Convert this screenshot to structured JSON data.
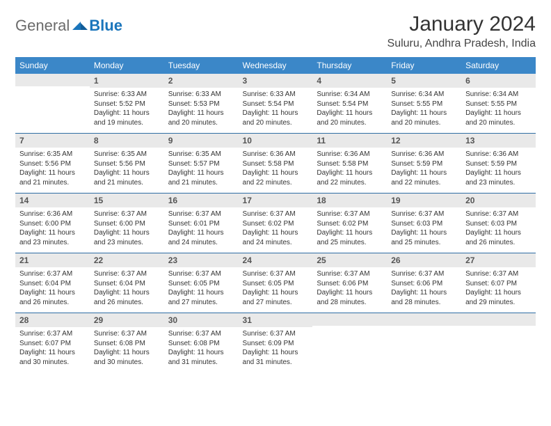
{
  "logo": {
    "text_general": "General",
    "text_blue": "Blue"
  },
  "title": {
    "month": "January 2024",
    "location": "Suluru, Andhra Pradesh, India"
  },
  "colors": {
    "header_bg": "#3b87c8",
    "header_text": "#ffffff",
    "daynum_bg": "#e9e9e9",
    "row_border": "#2e6da4",
    "logo_gray": "#6b6b6b",
    "logo_blue": "#1a75bb"
  },
  "typography": {
    "month_fontsize": 30,
    "location_fontsize": 16,
    "dow_fontsize": 12,
    "daynum_fontsize": 12,
    "cell_fontsize": 10
  },
  "day_headers": [
    "Sunday",
    "Monday",
    "Tuesday",
    "Wednesday",
    "Thursday",
    "Friday",
    "Saturday"
  ],
  "weeks": [
    [
      {
        "num": "",
        "lines": []
      },
      {
        "num": "1",
        "lines": [
          "Sunrise: 6:33 AM",
          "Sunset: 5:52 PM",
          "Daylight: 11 hours",
          "and 19 minutes."
        ]
      },
      {
        "num": "2",
        "lines": [
          "Sunrise: 6:33 AM",
          "Sunset: 5:53 PM",
          "Daylight: 11 hours",
          "and 20 minutes."
        ]
      },
      {
        "num": "3",
        "lines": [
          "Sunrise: 6:33 AM",
          "Sunset: 5:54 PM",
          "Daylight: 11 hours",
          "and 20 minutes."
        ]
      },
      {
        "num": "4",
        "lines": [
          "Sunrise: 6:34 AM",
          "Sunset: 5:54 PM",
          "Daylight: 11 hours",
          "and 20 minutes."
        ]
      },
      {
        "num": "5",
        "lines": [
          "Sunrise: 6:34 AM",
          "Sunset: 5:55 PM",
          "Daylight: 11 hours",
          "and 20 minutes."
        ]
      },
      {
        "num": "6",
        "lines": [
          "Sunrise: 6:34 AM",
          "Sunset: 5:55 PM",
          "Daylight: 11 hours",
          "and 20 minutes."
        ]
      }
    ],
    [
      {
        "num": "7",
        "lines": [
          "Sunrise: 6:35 AM",
          "Sunset: 5:56 PM",
          "Daylight: 11 hours",
          "and 21 minutes."
        ]
      },
      {
        "num": "8",
        "lines": [
          "Sunrise: 6:35 AM",
          "Sunset: 5:56 PM",
          "Daylight: 11 hours",
          "and 21 minutes."
        ]
      },
      {
        "num": "9",
        "lines": [
          "Sunrise: 6:35 AM",
          "Sunset: 5:57 PM",
          "Daylight: 11 hours",
          "and 21 minutes."
        ]
      },
      {
        "num": "10",
        "lines": [
          "Sunrise: 6:36 AM",
          "Sunset: 5:58 PM",
          "Daylight: 11 hours",
          "and 22 minutes."
        ]
      },
      {
        "num": "11",
        "lines": [
          "Sunrise: 6:36 AM",
          "Sunset: 5:58 PM",
          "Daylight: 11 hours",
          "and 22 minutes."
        ]
      },
      {
        "num": "12",
        "lines": [
          "Sunrise: 6:36 AM",
          "Sunset: 5:59 PM",
          "Daylight: 11 hours",
          "and 22 minutes."
        ]
      },
      {
        "num": "13",
        "lines": [
          "Sunrise: 6:36 AM",
          "Sunset: 5:59 PM",
          "Daylight: 11 hours",
          "and 23 minutes."
        ]
      }
    ],
    [
      {
        "num": "14",
        "lines": [
          "Sunrise: 6:36 AM",
          "Sunset: 6:00 PM",
          "Daylight: 11 hours",
          "and 23 minutes."
        ]
      },
      {
        "num": "15",
        "lines": [
          "Sunrise: 6:37 AM",
          "Sunset: 6:00 PM",
          "Daylight: 11 hours",
          "and 23 minutes."
        ]
      },
      {
        "num": "16",
        "lines": [
          "Sunrise: 6:37 AM",
          "Sunset: 6:01 PM",
          "Daylight: 11 hours",
          "and 24 minutes."
        ]
      },
      {
        "num": "17",
        "lines": [
          "Sunrise: 6:37 AM",
          "Sunset: 6:02 PM",
          "Daylight: 11 hours",
          "and 24 minutes."
        ]
      },
      {
        "num": "18",
        "lines": [
          "Sunrise: 6:37 AM",
          "Sunset: 6:02 PM",
          "Daylight: 11 hours",
          "and 25 minutes."
        ]
      },
      {
        "num": "19",
        "lines": [
          "Sunrise: 6:37 AM",
          "Sunset: 6:03 PM",
          "Daylight: 11 hours",
          "and 25 minutes."
        ]
      },
      {
        "num": "20",
        "lines": [
          "Sunrise: 6:37 AM",
          "Sunset: 6:03 PM",
          "Daylight: 11 hours",
          "and 26 minutes."
        ]
      }
    ],
    [
      {
        "num": "21",
        "lines": [
          "Sunrise: 6:37 AM",
          "Sunset: 6:04 PM",
          "Daylight: 11 hours",
          "and 26 minutes."
        ]
      },
      {
        "num": "22",
        "lines": [
          "Sunrise: 6:37 AM",
          "Sunset: 6:04 PM",
          "Daylight: 11 hours",
          "and 26 minutes."
        ]
      },
      {
        "num": "23",
        "lines": [
          "Sunrise: 6:37 AM",
          "Sunset: 6:05 PM",
          "Daylight: 11 hours",
          "and 27 minutes."
        ]
      },
      {
        "num": "24",
        "lines": [
          "Sunrise: 6:37 AM",
          "Sunset: 6:05 PM",
          "Daylight: 11 hours",
          "and 27 minutes."
        ]
      },
      {
        "num": "25",
        "lines": [
          "Sunrise: 6:37 AM",
          "Sunset: 6:06 PM",
          "Daylight: 11 hours",
          "and 28 minutes."
        ]
      },
      {
        "num": "26",
        "lines": [
          "Sunrise: 6:37 AM",
          "Sunset: 6:06 PM",
          "Daylight: 11 hours",
          "and 28 minutes."
        ]
      },
      {
        "num": "27",
        "lines": [
          "Sunrise: 6:37 AM",
          "Sunset: 6:07 PM",
          "Daylight: 11 hours",
          "and 29 minutes."
        ]
      }
    ],
    [
      {
        "num": "28",
        "lines": [
          "Sunrise: 6:37 AM",
          "Sunset: 6:07 PM",
          "Daylight: 11 hours",
          "and 30 minutes."
        ]
      },
      {
        "num": "29",
        "lines": [
          "Sunrise: 6:37 AM",
          "Sunset: 6:08 PM",
          "Daylight: 11 hours",
          "and 30 minutes."
        ]
      },
      {
        "num": "30",
        "lines": [
          "Sunrise: 6:37 AM",
          "Sunset: 6:08 PM",
          "Daylight: 11 hours",
          "and 31 minutes."
        ]
      },
      {
        "num": "31",
        "lines": [
          "Sunrise: 6:37 AM",
          "Sunset: 6:09 PM",
          "Daylight: 11 hours",
          "and 31 minutes."
        ]
      },
      {
        "num": "",
        "lines": []
      },
      {
        "num": "",
        "lines": []
      },
      {
        "num": "",
        "lines": []
      }
    ]
  ]
}
